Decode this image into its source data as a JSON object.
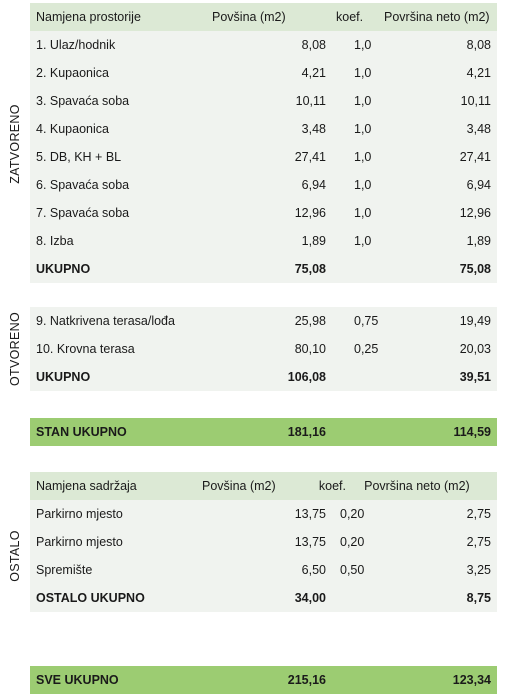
{
  "zatvoreno": {
    "label": "ZATVORENO",
    "header": [
      "Namjena prostorije",
      "Povšina (m2)",
      "koef.",
      "Površina neto (m2)"
    ],
    "rows": [
      [
        "1. Ulaz/hodnik",
        "8,08",
        "1,0",
        "8,08"
      ],
      [
        "2. Kupaonica",
        "4,21",
        "1,0",
        "4,21"
      ],
      [
        "3. Spavaća soba",
        "10,11",
        "1,0",
        "10,11"
      ],
      [
        "4. Kupaonica",
        "3,48",
        "1,0",
        "3,48"
      ],
      [
        "5. DB, KH + BL",
        "27,41",
        "1,0",
        "27,41"
      ],
      [
        "6. Spavaća soba",
        "6,94",
        "1,0",
        "6,94"
      ],
      [
        "7. Spavaća soba",
        "12,96",
        "1,0",
        "12,96"
      ],
      [
        "8. Izba",
        "1,89",
        "1,0",
        "1,89"
      ]
    ],
    "total": [
      "UKUPNO",
      "75,08",
      "",
      "75,08"
    ]
  },
  "otvoreno": {
    "label": "OTVORENO",
    "rows": [
      [
        "9. Natkrivena terasa/lođa",
        "25,98",
        "0,75",
        "19,49"
      ],
      [
        "10. Krovna terasa",
        "80,10",
        "0,25",
        "20,03"
      ]
    ],
    "total": [
      "UKUPNO",
      "106,08",
      "",
      "39,51"
    ]
  },
  "stan_ukupno": [
    "STAN UKUPNO",
    "181,16",
    "",
    "114,59"
  ],
  "ostalo": {
    "label": "OSTALO",
    "header": [
      "Namjena sadržaja",
      "Povšina (m2)",
      "koef.",
      "Površina neto (m2)"
    ],
    "rows": [
      [
        "Parkirno mjesto",
        "13,75",
        "0,20",
        "2,75"
      ],
      [
        "Parkirno mjesto",
        "13,75",
        "0,20",
        "2,75"
      ],
      [
        "Spremište",
        "6,50",
        "0,50",
        "3,25"
      ]
    ],
    "total": [
      "OSTALO UKUPNO",
      "34,00",
      "",
      "8,75"
    ]
  },
  "sve_ukupno": [
    "SVE UKUPNO",
    "215,16",
    "",
    "123,34"
  ],
  "colors": {
    "header_bg": "#dce9d5",
    "row_bg": "#f0f3ef",
    "total_green": "#9ccc72"
  }
}
